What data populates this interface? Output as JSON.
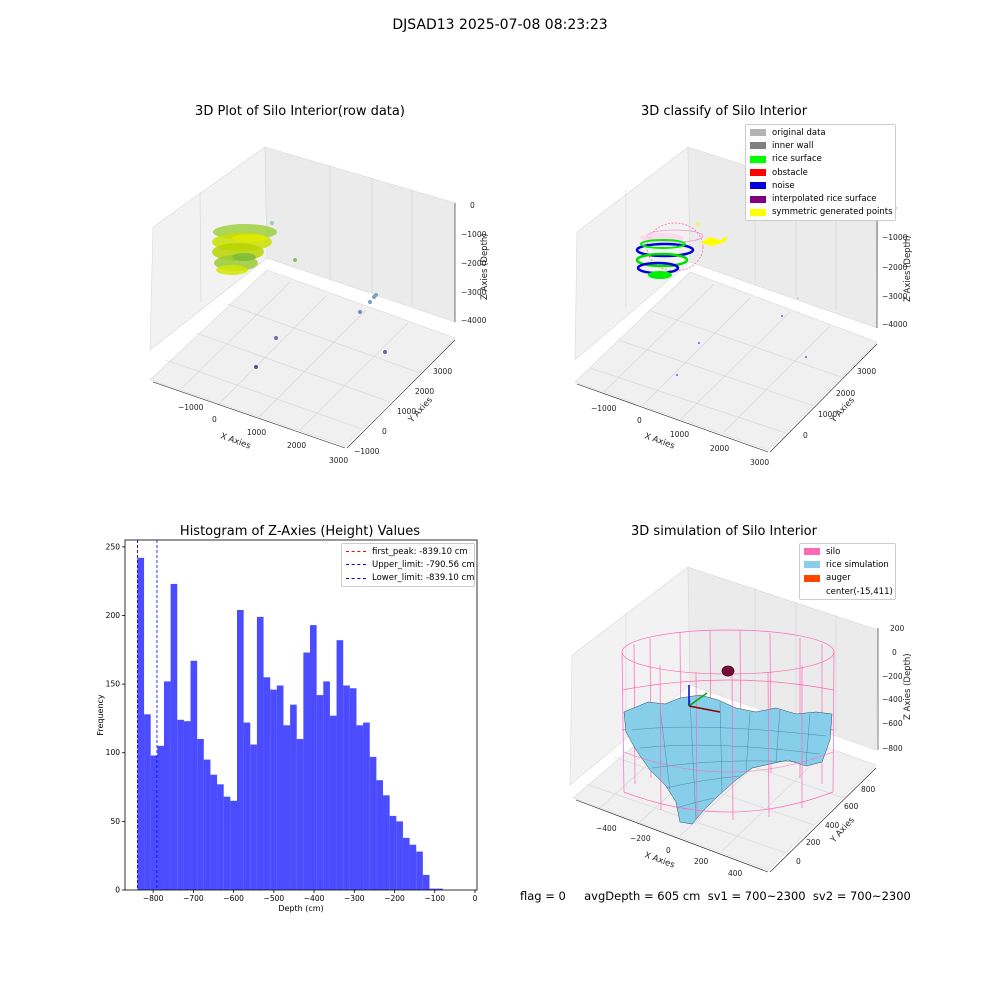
{
  "figure": {
    "suptitle": "DJSAD13 2025-07-08 08:23:23"
  },
  "panels": {
    "raw": {
      "title": "3D Plot of Silo Interior(row data)",
      "xlabel": "X Axies",
      "ylabel": "Y Axies",
      "zlabel": "Z Axies (Depth)",
      "xticks": [
        "−1000",
        "0",
        "1000",
        "2000",
        "3000"
      ],
      "yticks": [
        "−1000",
        "0",
        "1000",
        "2000",
        "3000"
      ],
      "zticks": [
        "0",
        "−1000",
        "−2000",
        "−3000",
        "−4000"
      ]
    },
    "classify": {
      "title": "3D classify of Silo Interior",
      "xlabel": "X Axies",
      "ylabel": "Y Axies",
      "zlabel": "Z Axies (Depth)",
      "xticks": [
        "−1000",
        "0",
        "1000",
        "2000",
        "3000"
      ],
      "yticks": [
        "0",
        "1000",
        "2000",
        "3000"
      ],
      "zticks": [
        "0",
        "−1000",
        "−2000",
        "−3000",
        "−4000"
      ],
      "legend": [
        {
          "label": "original data",
          "color": "#b3b3b3"
        },
        {
          "label": "inner wall",
          "color": "#808080"
        },
        {
          "label": "rice surface",
          "color": "#00ff00"
        },
        {
          "label": "obstacle",
          "color": "#ff0000"
        },
        {
          "label": "noise",
          "color": "#0000dd"
        },
        {
          "label": "interpolated rice surface",
          "color": "#800080"
        },
        {
          "label": "symmetric generated points",
          "color": "#ffff00"
        }
      ]
    },
    "histogram": {
      "title": "Histogram of Z-Axies (Height) Values",
      "legend": [
        {
          "label": "first_peak: -839.10 cm",
          "color": "#ff0000"
        },
        {
          "label": "Upper_limit: -790.56 cm",
          "color": "#0000ff"
        },
        {
          "label": "Lower_limit: -839.10 cm",
          "color": "#0000ff"
        }
      ]
    },
    "simulation": {
      "title": "3D simulation of Silo Interior",
      "xlabel": "X Axies",
      "ylabel": "Y Axies",
      "zlabel": "Z Axies (Depth)",
      "xticks": [
        "−400",
        "−200",
        "0",
        "200",
        "400"
      ],
      "yticks": [
        "0",
        "200",
        "400",
        "600",
        "800"
      ],
      "zticks": [
        "200",
        "0",
        "−200",
        "−400",
        "−600",
        "−800"
      ],
      "legend": [
        {
          "label": "silo",
          "color": "#ff69b4"
        },
        {
          "label": "rice simulation",
          "color": "#87ceeb"
        },
        {
          "label": "auger",
          "color": "#ff4500"
        },
        {
          "label": "center(-15,411)",
          "color": ""
        }
      ]
    }
  },
  "status": {
    "text": "flag = 0     avgDepth = 605 cm  sv1 = 700~2300  sv2 = 700~2300"
  },
  "chart_data": {
    "type": "bar",
    "title": "Histogram of Z-Axies (Height) Values",
    "xlabel": "Depth (cm)",
    "ylabel": "Frequency",
    "xlim": [
      -870,
      5
    ],
    "ylim": [
      0,
      255
    ],
    "xticks": [
      -800,
      -700,
      -600,
      -500,
      -400,
      -300,
      -200,
      -100,
      0
    ],
    "yticks": [
      0,
      50,
      100,
      150,
      200,
      250
    ],
    "bin_start": -839.1,
    "bin_width": 16.5,
    "values": [
      242,
      128,
      98,
      105,
      152,
      223,
      124,
      123,
      167,
      110,
      95,
      84,
      77,
      68,
      65,
      204,
      122,
      106,
      199,
      155,
      146,
      149,
      120,
      135,
      110,
      173,
      193,
      142,
      152,
      127,
      182,
      149,
      147,
      120,
      122,
      97,
      80,
      69,
      54,
      50,
      38,
      33,
      28,
      11,
      1,
      1
    ],
    "bar_color": "#0000ff",
    "vlines": [
      {
        "name": "first_peak: -839.10 cm",
        "x": -839.1,
        "color": "#ff0000"
      },
      {
        "name": "Upper_limit: -790.56 cm",
        "x": -790.56,
        "color": "#0000ff"
      },
      {
        "name": "Lower_limit: -839.10 cm",
        "x": -839.1,
        "color": "#0000ff"
      }
    ],
    "legend_position": "upper right"
  }
}
